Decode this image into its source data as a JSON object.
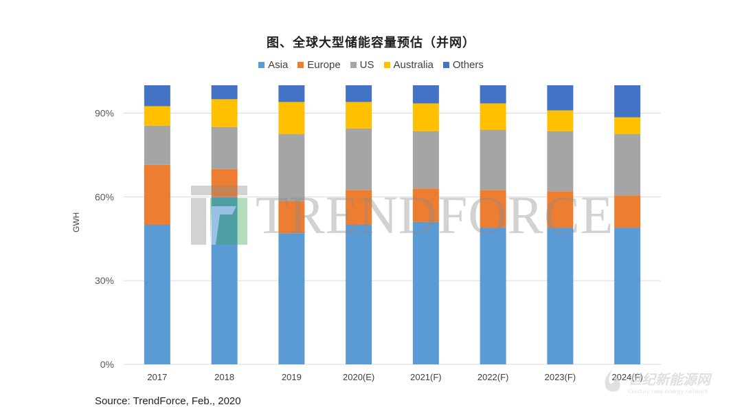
{
  "chart_data": {
    "type": "bar",
    "stacked": true,
    "title": "图、全球大型储能容量预估（并网）",
    "ylabel": "GWH",
    "xlabel": "",
    "ylim": [
      0,
      100
    ],
    "yticks": [
      "0%",
      "30%",
      "60%",
      "90%"
    ],
    "categories": [
      "2017",
      "2018",
      "2019",
      "2020(E)",
      "2021(F)",
      "2022(F)",
      "2023(F)",
      "2024(F)"
    ],
    "series": [
      {
        "name": "Asia",
        "color": "#5B9BD5",
        "values": [
          50,
          60,
          47,
          50,
          51,
          49,
          49,
          49
        ]
      },
      {
        "name": "Europe",
        "color": "#ED7D31",
        "values": [
          21.5,
          10,
          11.5,
          12.5,
          12,
          13.5,
          13,
          11.5
        ]
      },
      {
        "name": "US",
        "color": "#A5A5A5",
        "values": [
          14,
          15,
          24,
          22,
          20.5,
          21.5,
          21.5,
          22
        ]
      },
      {
        "name": "Australia",
        "color": "#FFC000",
        "values": [
          7,
          10,
          11.5,
          9.5,
          10,
          9.5,
          7.5,
          6
        ]
      },
      {
        "name": "Others",
        "color": "#4472C4",
        "values": [
          7.5,
          5,
          6,
          6,
          6.5,
          6.5,
          9,
          11.5
        ]
      }
    ],
    "grid": true,
    "legend_position": "top"
  },
  "source": "Source: TrendForce, Feb., 2020",
  "watermark": "TRENDFORCE",
  "corner_logo": {
    "main": "世纪新能源网",
    "sub": "Century new energy network"
  }
}
